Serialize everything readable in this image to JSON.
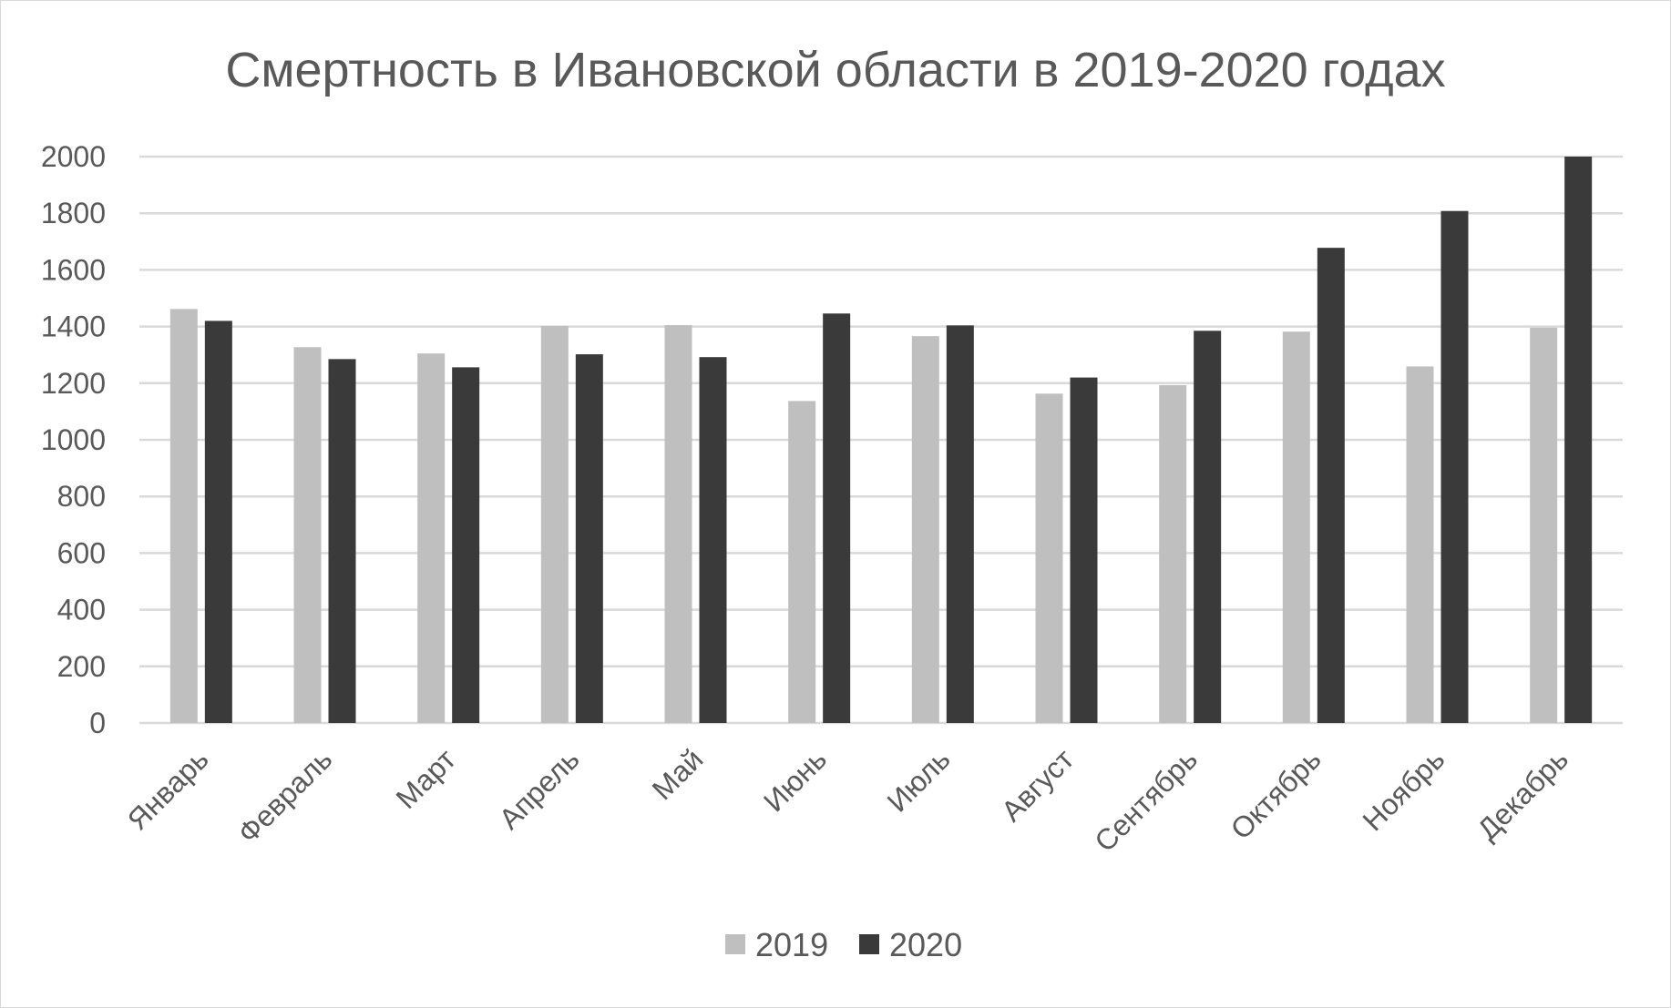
{
  "chart_data": {
    "type": "bar",
    "title": "Смертность в Ивановской области в 2019-2020 годах",
    "xlabel": "",
    "ylabel": "",
    "ylim": [
      0,
      2000
    ],
    "yticks": [
      0,
      200,
      400,
      600,
      800,
      1000,
      1200,
      1400,
      1600,
      1800,
      2000
    ],
    "grid": true,
    "legend_position": "bottom",
    "categories": [
      "Январь",
      "Февраль",
      "Март",
      "Апрель",
      "Май",
      "Июнь",
      "Июль",
      "Август",
      "Сентябрь",
      "Октябрь",
      "Ноябрь",
      "Декабрь"
    ],
    "series": [
      {
        "name": "2019",
        "color": "#bfbfbf",
        "values": [
          1462,
          1327,
          1305,
          1402,
          1405,
          1137,
          1366,
          1163,
          1193,
          1382,
          1259,
          1396
        ]
      },
      {
        "name": "2020",
        "color": "#3a3a3a",
        "values": [
          1420,
          1285,
          1256,
          1302,
          1292,
          1446,
          1404,
          1220,
          1385,
          1678,
          1808,
          2000
        ]
      }
    ]
  }
}
